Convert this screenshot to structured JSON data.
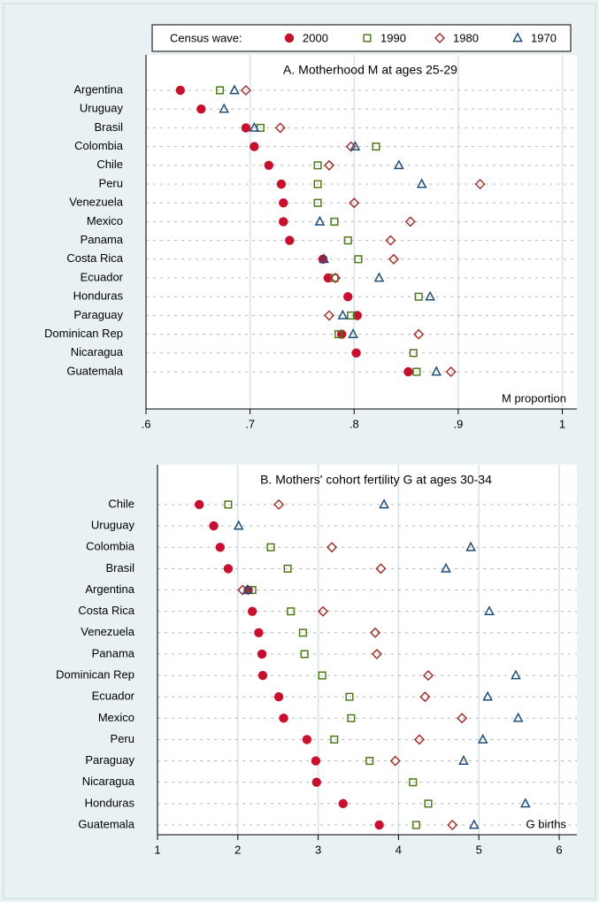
{
  "legend": {
    "title": "Census wave:"
  },
  "chart_data": [
    {
      "type": "dot",
      "title": "A. Motherhood M at ages 25-29",
      "xlabel": "M proportion",
      "categories": [
        "Argentina",
        "Uruguay",
        "Brasil",
        "Colombia",
        "Chile",
        "Peru",
        "Venezuela",
        "Mexico",
        "Panama",
        "Costa Rica",
        "Ecuador",
        "Honduras",
        "Paraguay",
        "Dominican Rep",
        "Nicaragua",
        "Guatemala"
      ],
      "series": [
        {
          "name": "2000",
          "color": "#c8102e",
          "marker": "circle",
          "values": [
            0.633,
            0.653,
            0.696,
            0.704,
            0.718,
            0.73,
            0.732,
            0.732,
            0.738,
            0.77,
            0.775,
            0.794,
            0.803,
            0.788,
            0.802,
            0.852
          ]
        },
        {
          "name": "1990",
          "color": "#4e7a1a",
          "marker": "square",
          "values": [
            0.671,
            null,
            0.71,
            0.821,
            0.765,
            0.765,
            0.765,
            0.781,
            0.794,
            0.804,
            0.781,
            0.862,
            0.797,
            0.785,
            0.857,
            0.86
          ]
        },
        {
          "name": "1980",
          "color": "#a3322e",
          "marker": "diamond",
          "values": [
            0.696,
            null,
            0.729,
            0.797,
            0.776,
            0.921,
            0.8,
            0.854,
            0.835,
            0.838,
            0.782,
            null,
            0.776,
            0.862,
            null,
            0.893
          ]
        },
        {
          "name": "1970",
          "color": "#1f4e79",
          "marker": "triangle",
          "values": [
            0.685,
            0.675,
            0.704,
            0.801,
            0.843,
            0.865,
            null,
            0.767,
            null,
            0.771,
            0.824,
            0.873,
            0.789,
            0.799,
            null,
            0.879
          ]
        }
      ],
      "xlim": [
        0.6,
        1.014
      ],
      "xticks": [
        {
          "value": 0.6,
          "label": ".6"
        },
        {
          "value": 0.7,
          "label": ".7"
        },
        {
          "value": 0.8,
          "label": ".8"
        },
        {
          "value": 0.9,
          "label": ".9"
        },
        1
      ],
      "grid": true
    },
    {
      "type": "dot",
      "title": "B. Mothers' cohort fertility G at ages 30-34",
      "xlabel": "G births",
      "categories": [
        "Chile",
        "Uruguay",
        "Colombia",
        "Brasil",
        "Argentina",
        "Costa Rica",
        "Venezuela",
        "Panama",
        "Dominican Rep",
        "Ecuador",
        "Mexico",
        "Peru",
        "Paraguay",
        "Nicaragua",
        "Honduras",
        "Guatemala"
      ],
      "series": [
        {
          "color": "#c8102e",
          "marker": "circle",
          "values": [
            1.52,
            1.7,
            1.78,
            1.88,
            2.13,
            2.18,
            2.26,
            2.3,
            2.31,
            2.51,
            2.57,
            2.86,
            2.97,
            2.98,
            3.31,
            3.76
          ]
        },
        {
          "color": "#4e7a1a",
          "marker": "square",
          "values": [
            1.88,
            null,
            2.41,
            2.62,
            2.18,
            2.66,
            2.81,
            2.83,
            3.05,
            3.39,
            3.41,
            3.2,
            3.64,
            4.18,
            4.37,
            4.22
          ]
        },
        {
          "color": "#a3322e",
          "marker": "diamond",
          "values": [
            2.51,
            null,
            3.17,
            3.78,
            2.06,
            3.06,
            3.71,
            3.73,
            4.37,
            4.33,
            4.79,
            4.26,
            3.96,
            null,
            null,
            4.67
          ]
        },
        {
          "color": "#1f4e79",
          "marker": "triangle",
          "values": [
            3.82,
            2.01,
            4.9,
            4.59,
            2.12,
            5.13,
            null,
            null,
            5.46,
            5.11,
            5.49,
            5.05,
            4.81,
            null,
            5.58,
            4.94
          ]
        }
      ],
      "xlim": [
        1,
        6.22
      ],
      "xticks": [
        1,
        2,
        3,
        4,
        5,
        6
      ],
      "grid": true
    }
  ]
}
